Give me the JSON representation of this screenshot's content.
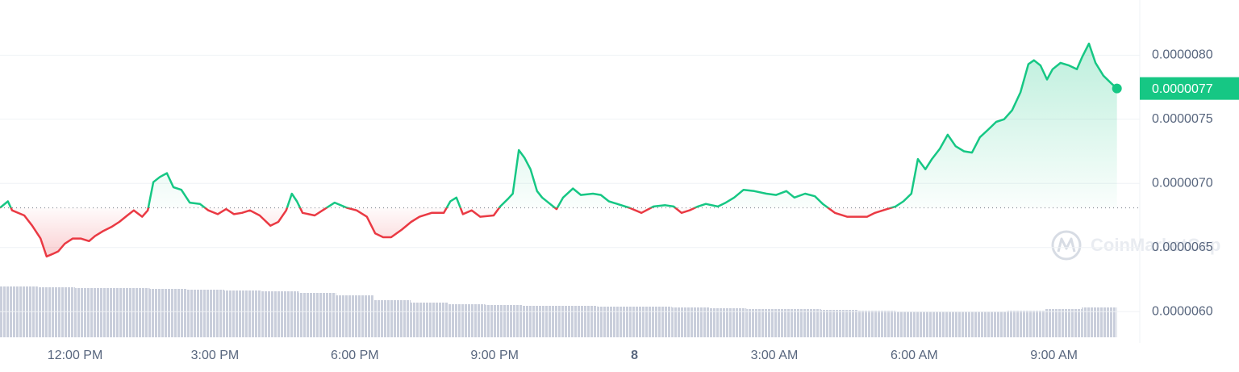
{
  "chart_data": {
    "type": "line",
    "x": [
      10.39,
      10.56,
      10.65,
      10.91,
      11.08,
      11.26,
      11.39,
      11.52,
      11.64,
      11.78,
      11.95,
      12.12,
      12.3,
      12.43,
      12.61,
      12.78,
      12.95,
      13.12,
      13.26,
      13.44,
      13.56,
      13.68,
      13.82,
      13.97,
      14.11,
      14.28,
      14.46,
      14.68,
      14.86,
      15.06,
      15.24,
      15.41,
      15.58,
      15.75,
      15.96,
      16.19,
      16.36,
      16.53,
      16.65,
      16.76,
      16.88,
      17.14,
      17.31,
      17.57,
      17.83,
      18.04,
      18.26,
      18.44,
      18.61,
      18.78,
      19.01,
      19.21,
      19.39,
      19.65,
      19.91,
      20.05,
      20.18,
      20.32,
      20.51,
      20.69,
      20.98,
      21.12,
      21.29,
      21.39,
      21.52,
      21.64,
      21.77,
      21.91,
      22.02,
      22.19,
      22.33,
      22.47,
      22.68,
      22.85,
      23.11,
      23.28,
      23.45,
      23.63,
      23.89,
      24.15,
      24.41,
      24.66,
      24.84,
      25.01,
      25.18,
      25.36,
      25.53,
      25.79,
      25.96,
      26.14,
      26.34,
      26.57,
      26.83,
      27.04,
      27.26,
      27.43,
      27.66,
      27.87,
      28.04,
      28.3,
      28.56,
      28.82,
      28.99,
      29.16,
      29.42,
      29.6,
      29.77,
      29.94,
      30.08,
      30.24,
      30.38,
      30.55,
      30.72,
      30.89,
      31.07,
      31.24,
      31.41,
      31.59,
      31.76,
      31.93,
      32.1,
      32.28,
      32.45,
      32.57,
      32.71,
      32.85,
      32.97,
      33.14,
      33.32,
      33.49,
      33.61,
      33.75,
      33.89,
      34.06,
      34.23,
      34.35
    ],
    "values": [
      6.81e-06,
      6.86e-06,
      6.79e-06,
      6.75e-06,
      6.67e-06,
      6.57e-06,
      6.43e-06,
      6.45e-06,
      6.47e-06,
      6.53e-06,
      6.57e-06,
      6.57e-06,
      6.55e-06,
      6.59e-06,
      6.63e-06,
      6.66e-06,
      6.7e-06,
      6.75e-06,
      6.79e-06,
      6.74e-06,
      6.79e-06,
      7.01e-06,
      7.05e-06,
      7.08e-06,
      6.97e-06,
      6.95e-06,
      6.85e-06,
      6.84e-06,
      6.79e-06,
      6.76e-06,
      6.8e-06,
      6.76e-06,
      6.77e-06,
      6.79e-06,
      6.75e-06,
      6.67e-06,
      6.7e-06,
      6.79e-06,
      6.92e-06,
      6.86e-06,
      6.77e-06,
      6.75e-06,
      6.79e-06,
      6.85e-06,
      6.81e-06,
      6.79e-06,
      6.74e-06,
      6.61e-06,
      6.58e-06,
      6.58e-06,
      6.64e-06,
      6.7e-06,
      6.74e-06,
      6.77e-06,
      6.77e-06,
      6.86e-06,
      6.89e-06,
      6.76e-06,
      6.79e-06,
      6.74e-06,
      6.75e-06,
      6.82e-06,
      6.88e-06,
      6.92e-06,
      7.26e-06,
      7.2e-06,
      7.11e-06,
      6.94e-06,
      6.89e-06,
      6.84e-06,
      6.8e-06,
      6.89e-06,
      6.96e-06,
      6.91e-06,
      6.92e-06,
      6.91e-06,
      6.86e-06,
      6.84e-06,
      6.81e-06,
      6.77e-06,
      6.82e-06,
      6.83e-06,
      6.82e-06,
      6.77e-06,
      6.79e-06,
      6.82e-06,
      6.84e-06,
      6.82e-06,
      6.85e-06,
      6.89e-06,
      6.95e-06,
      6.94e-06,
      6.92e-06,
      6.91e-06,
      6.94e-06,
      6.89e-06,
      6.92e-06,
      6.9e-06,
      6.84e-06,
      6.77e-06,
      6.74e-06,
      6.74e-06,
      6.74e-06,
      6.77e-06,
      6.8e-06,
      6.82e-06,
      6.86e-06,
      6.92e-06,
      7.19e-06,
      7.11e-06,
      7.19e-06,
      7.27e-06,
      7.38e-06,
      7.29e-06,
      7.25e-06,
      7.24e-06,
      7.36e-06,
      7.42e-06,
      7.48e-06,
      7.5e-06,
      7.57e-06,
      7.71e-06,
      7.93e-06,
      7.96e-06,
      7.92e-06,
      7.81e-06,
      7.89e-06,
      7.94e-06,
      7.92e-06,
      7.89e-06,
      7.99e-06,
      8.09e-06,
      7.94e-06,
      7.84e-06,
      7.78e-06,
      7.74e-06
    ],
    "up_color": "#16c784",
    "down_color": "#ea3943",
    "baseline": 6.81e-06,
    "last_label": "0.0000077",
    "xlim": [
      10.39,
      34.84
    ],
    "xticks": [
      {
        "value": 12,
        "label": "12:00 PM"
      },
      {
        "value": 15,
        "label": "3:00 PM"
      },
      {
        "value": 18,
        "label": "6:00 PM"
      },
      {
        "value": 21,
        "label": "9:00 PM"
      },
      {
        "value": 24,
        "label": "8"
      },
      {
        "value": 27,
        "label": "3:00 AM"
      },
      {
        "value": 30,
        "label": "6:00 AM"
      },
      {
        "value": 33,
        "label": "9:00 AM"
      }
    ],
    "ylim": [
      5.8e-06,
      8.43e-06
    ],
    "yticks": [
      {
        "value": 6e-06,
        "label": "0.0000060"
      },
      {
        "value": 6.5e-06,
        "label": "0.0000065"
      },
      {
        "value": 7e-06,
        "label": "0.0000070"
      },
      {
        "value": 7.5e-06,
        "label": "0.0000075"
      },
      {
        "value": 8e-06,
        "label": "0.0000080"
      }
    ],
    "grid": true,
    "volume": {
      "color": "#c3c8d6",
      "ylim": [
        0,
        100
      ],
      "x": [
        10.39,
        11.2,
        12,
        12.8,
        13.6,
        14.4,
        15.2,
        16,
        16.8,
        17.6,
        18.4,
        19.2,
        20,
        20.8,
        21.6,
        22.4,
        23.2,
        24,
        24.8,
        25.6,
        26.4,
        27.2,
        28,
        28.8,
        29.6,
        30.4,
        31.2,
        32,
        32.8,
        33.6
      ],
      "values": [
        63,
        62,
        61,
        61,
        60,
        59,
        58,
        57,
        55,
        52,
        46,
        43,
        41,
        40,
        39,
        39,
        38,
        38,
        37,
        36,
        35,
        35,
        34,
        33,
        32,
        32,
        32,
        33,
        35,
        37
      ]
    },
    "watermark": "CoinMarketCap"
  }
}
